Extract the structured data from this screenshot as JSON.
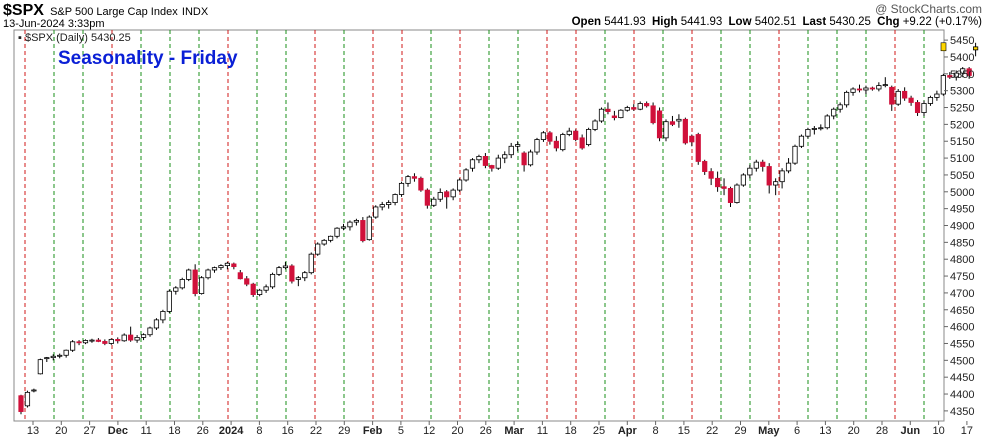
{
  "header": {
    "symbol": "$SPX",
    "name": "S&P 500 Large Cap Index",
    "exchange": "INDX",
    "date": "13-Jun-2024 3:33pm",
    "open_label": "Open",
    "open": "5441.93",
    "high_label": "High",
    "high": "5441.93",
    "low_label": "Low",
    "low": "5402.51",
    "last_label": "Last",
    "last": "5430.25",
    "chg_label": "Chg",
    "chg": "+9.22 (+0.17%)",
    "watermark": "@ StockCharts.com"
  },
  "legend": {
    "text": "▪ $SPX (Daily) 5430.25"
  },
  "annotation": "Seasonality - Friday",
  "colors": {
    "up_candle": "#ffffff",
    "down_candle": "#d0103a",
    "candle_outline": "#000000",
    "green_line": "#1a8f1a",
    "red_line": "#d01818",
    "title_blue": "#0a1fd6",
    "last_marker": "#ffd700"
  },
  "chart_data": {
    "type": "candlestick",
    "title": "Seasonality - Friday",
    "ylim": [
      4320,
      5480
    ],
    "y_ticks": [
      4350,
      4400,
      4450,
      4500,
      4550,
      4600,
      4650,
      4700,
      4750,
      4800,
      4850,
      4900,
      4950,
      5000,
      5050,
      5100,
      5150,
      5200,
      5250,
      5300,
      5350,
      5400,
      5450
    ],
    "x_ticks": [
      {
        "label": "13",
        "bold": false
      },
      {
        "label": "20",
        "bold": false
      },
      {
        "label": "27",
        "bold": false
      },
      {
        "label": "Dec",
        "bold": true
      },
      {
        "label": "11",
        "bold": false
      },
      {
        "label": "18",
        "bold": false
      },
      {
        "label": "26",
        "bold": false
      },
      {
        "label": "2024",
        "bold": true
      },
      {
        "label": "8",
        "bold": false
      },
      {
        "label": "16",
        "bold": false
      },
      {
        "label": "22",
        "bold": false
      },
      {
        "label": "29",
        "bold": false
      },
      {
        "label": "Feb",
        "bold": true
      },
      {
        "label": "5",
        "bold": false
      },
      {
        "label": "12",
        "bold": false
      },
      {
        "label": "20",
        "bold": false
      },
      {
        "label": "26",
        "bold": false
      },
      {
        "label": "Mar",
        "bold": true
      },
      {
        "label": "11",
        "bold": false
      },
      {
        "label": "18",
        "bold": false
      },
      {
        "label": "25",
        "bold": false
      },
      {
        "label": "Apr",
        "bold": true
      },
      {
        "label": "8",
        "bold": false
      },
      {
        "label": "15",
        "bold": false
      },
      {
        "label": "22",
        "bold": false
      },
      {
        "label": "29",
        "bold": false
      },
      {
        "label": "May",
        "bold": true
      },
      {
        "label": "6",
        "bold": false
      },
      {
        "label": "13",
        "bold": false
      },
      {
        "label": "20",
        "bold": false
      },
      {
        "label": "28",
        "bold": false
      },
      {
        "label": "Jun",
        "bold": true
      },
      {
        "label": "10",
        "bold": false
      },
      {
        "label": "17",
        "bold": false
      }
    ],
    "fridays": [
      {
        "color": "red"
      },
      {
        "color": "green"
      },
      {
        "color": "green"
      },
      {
        "color": "red"
      },
      {
        "color": "green"
      },
      {
        "color": "green"
      },
      {
        "color": "green"
      },
      {
        "color": "red"
      },
      {
        "color": "green"
      },
      {
        "color": "green"
      },
      {
        "color": "red"
      },
      {
        "color": "green"
      },
      {
        "color": "red"
      },
      {
        "color": "red"
      },
      {
        "color": "green"
      },
      {
        "color": "red"
      },
      {
        "color": "green"
      },
      {
        "color": "green"
      },
      {
        "color": "red"
      },
      {
        "color": "red"
      },
      {
        "color": "green"
      },
      {
        "color": "red"
      },
      {
        "color": "green"
      },
      {
        "color": "red"
      },
      {
        "color": "green"
      },
      {
        "color": "green"
      },
      {
        "color": "red"
      },
      {
        "color": "green"
      },
      {
        "color": "green"
      },
      {
        "color": "green"
      },
      {
        "color": "red"
      },
      {
        "color": "green"
      }
    ],
    "ohlc": [
      [
        4395,
        4398,
        4340,
        4348
      ],
      [
        4365,
        4410,
        4360,
        4405
      ],
      [
        4410,
        4416,
        4405,
        4412
      ],
      [
        4460,
        4505,
        4458,
        4502
      ],
      [
        4505,
        4510,
        4495,
        4508
      ],
      [
        4508,
        4518,
        4500,
        4512
      ],
      [
        4512,
        4520,
        4506,
        4515
      ],
      [
        4515,
        4532,
        4508,
        4530
      ],
      [
        4530,
        4560,
        4525,
        4555
      ],
      [
        4555,
        4560,
        4545,
        4553
      ],
      [
        4552,
        4562,
        4548,
        4559
      ],
      [
        4558,
        4564,
        4552,
        4560
      ],
      [
        4560,
        4566,
        4554,
        4556
      ],
      [
        4556,
        4562,
        4545,
        4550
      ],
      [
        4550,
        4565,
        4546,
        4562
      ],
      [
        4562,
        4568,
        4550,
        4558
      ],
      [
        4558,
        4580,
        4555,
        4575
      ],
      [
        4575,
        4600,
        4555,
        4560
      ],
      [
        4560,
        4575,
        4552,
        4568
      ],
      [
        4568,
        4580,
        4560,
        4576
      ],
      [
        4576,
        4600,
        4570,
        4596
      ],
      [
        4596,
        4625,
        4590,
        4620
      ],
      [
        4620,
        4650,
        4610,
        4645
      ],
      [
        4645,
        4710,
        4640,
        4705
      ],
      [
        4705,
        4720,
        4695,
        4715
      ],
      [
        4715,
        4745,
        4710,
        4740
      ],
      [
        4740,
        4772,
        4735,
        4768
      ],
      [
        4768,
        4785,
        4690,
        4698
      ],
      [
        4698,
        4750,
        4695,
        4745
      ],
      [
        4745,
        4772,
        4740,
        4768
      ],
      [
        4768,
        4778,
        4760,
        4775
      ],
      [
        4775,
        4785,
        4768,
        4781
      ],
      [
        4781,
        4792,
        4770,
        4788
      ],
      [
        4786,
        4790,
        4770,
        4778
      ],
      [
        4760,
        4768,
        4740,
        4742
      ],
      [
        4742,
        4750,
        4720,
        4726
      ],
      [
        4726,
        4730,
        4688,
        4695
      ],
      [
        4695,
        4712,
        4690,
        4708
      ],
      [
        4708,
        4725,
        4700,
        4718
      ],
      [
        4718,
        4760,
        4712,
        4755
      ],
      [
        4755,
        4780,
        4750,
        4775
      ],
      [
        4775,
        4792,
        4770,
        4780
      ],
      [
        4780,
        4785,
        4728,
        4735
      ],
      [
        4740,
        4750,
        4720,
        4745
      ],
      [
        4745,
        4765,
        4735,
        4760
      ],
      [
        4760,
        4820,
        4755,
        4815
      ],
      [
        4815,
        4850,
        4810,
        4845
      ],
      [
        4845,
        4860,
        4840,
        4856
      ],
      [
        4856,
        4870,
        4850,
        4868
      ],
      [
        4868,
        4895,
        4862,
        4892
      ],
      [
        4892,
        4905,
        4886,
        4896
      ],
      [
        4896,
        4915,
        4885,
        4910
      ],
      [
        4910,
        4920,
        4900,
        4915
      ],
      [
        4915,
        4925,
        4850,
        4855
      ],
      [
        4858,
        4930,
        4855,
        4925
      ],
      [
        4925,
        4960,
        4920,
        4955
      ],
      [
        4955,
        4970,
        4945,
        4962
      ],
      [
        4962,
        4975,
        4950,
        4968
      ],
      [
        4968,
        4995,
        4960,
        4992
      ],
      [
        4992,
        5030,
        4985,
        5025
      ],
      [
        5025,
        5050,
        5015,
        5045
      ],
      [
        5045,
        5055,
        5030,
        5040
      ],
      [
        5040,
        5045,
        5000,
        5005
      ],
      [
        5005,
        5010,
        4950,
        4960
      ],
      [
        4960,
        4985,
        4955,
        4978
      ],
      [
        4978,
        5010,
        4970,
        4998
      ],
      [
        5000,
        5005,
        4950,
        4985
      ],
      [
        4985,
        5010,
        4975,
        5005
      ],
      [
        5005,
        5040,
        5000,
        5035
      ],
      [
        5035,
        5070,
        5030,
        5065
      ],
      [
        5070,
        5100,
        5060,
        5095
      ],
      [
        5095,
        5110,
        5085,
        5105
      ],
      [
        5105,
        5115,
        5070,
        5078
      ],
      [
        5078,
        5080,
        5060,
        5070
      ],
      [
        5070,
        5110,
        5065,
        5100
      ],
      [
        5100,
        5120,
        5085,
        5110
      ],
      [
        5110,
        5145,
        5100,
        5135
      ],
      [
        5135,
        5150,
        5120,
        5140
      ],
      [
        5115,
        5120,
        5060,
        5080
      ],
      [
        5080,
        5125,
        5075,
        5118
      ],
      [
        5118,
        5160,
        5110,
        5155
      ],
      [
        5155,
        5180,
        5148,
        5175
      ],
      [
        5175,
        5180,
        5140,
        5150
      ],
      [
        5150,
        5165,
        5120,
        5130
      ],
      [
        5125,
        5175,
        5120,
        5170
      ],
      [
        5170,
        5190,
        5165,
        5180
      ],
      [
        5180,
        5185,
        5150,
        5155
      ],
      [
        5160,
        5170,
        5125,
        5130
      ],
      [
        5140,
        5190,
        5135,
        5185
      ],
      [
        5185,
        5215,
        5180,
        5210
      ],
      [
        5210,
        5250,
        5205,
        5245
      ],
      [
        5245,
        5265,
        5230,
        5238
      ],
      [
        5225,
        5240,
        5212,
        5220
      ],
      [
        5220,
        5245,
        5218,
        5242
      ],
      [
        5242,
        5255,
        5238,
        5250
      ],
      [
        5250,
        5260,
        5240,
        5245
      ],
      [
        5245,
        5268,
        5242,
        5262
      ],
      [
        5262,
        5268,
        5250,
        5255
      ],
      [
        5255,
        5265,
        5200,
        5205
      ],
      [
        5240,
        5250,
        5150,
        5160
      ],
      [
        5160,
        5215,
        5150,
        5208
      ],
      [
        5208,
        5225,
        5195,
        5200
      ],
      [
        5210,
        5230,
        5190,
        5215
      ],
      [
        5215,
        5220,
        5140,
        5145
      ],
      [
        5165,
        5170,
        5135,
        5148
      ],
      [
        5170,
        5175,
        5080,
        5090
      ],
      [
        5090,
        5095,
        5050,
        5060
      ],
      [
        5060,
        5070,
        5020,
        5040
      ],
      [
        5040,
        5060,
        5000,
        5015
      ],
      [
        5015,
        5040,
        4990,
        5010
      ],
      [
        5010,
        5015,
        4955,
        4968
      ],
      [
        4968,
        5025,
        4965,
        5020
      ],
      [
        5020,
        5055,
        5015,
        5050
      ],
      [
        5050,
        5080,
        5040,
        5070
      ],
      [
        5070,
        5095,
        5060,
        5088
      ],
      [
        5088,
        5095,
        5060,
        5075
      ],
      [
        5075,
        5085,
        4995,
        5020
      ],
      [
        5020,
        5040,
        4990,
        5030
      ],
      [
        5030,
        5070,
        5010,
        5062
      ],
      [
        5062,
        5100,
        5055,
        5085
      ],
      [
        5085,
        5140,
        5080,
        5135
      ],
      [
        5135,
        5170,
        5130,
        5165
      ],
      [
        5165,
        5190,
        5158,
        5185
      ],
      [
        5185,
        5195,
        5170,
        5188
      ],
      [
        5188,
        5200,
        5182,
        5190
      ],
      [
        5190,
        5230,
        5185,
        5225
      ],
      [
        5225,
        5250,
        5215,
        5245
      ],
      [
        5245,
        5265,
        5235,
        5258
      ],
      [
        5258,
        5300,
        5250,
        5295
      ],
      [
        5295,
        5310,
        5285,
        5305
      ],
      [
        5305,
        5318,
        5295,
        5302
      ],
      [
        5302,
        5315,
        5290,
        5308
      ],
      [
        5308,
        5312,
        5300,
        5305
      ],
      [
        5305,
        5325,
        5298,
        5315
      ],
      [
        5315,
        5340,
        5310,
        5318
      ],
      [
        5310,
        5315,
        5240,
        5260
      ],
      [
        5260,
        5305,
        5255,
        5298
      ],
      [
        5298,
        5310,
        5270,
        5278
      ],
      [
        5278,
        5285,
        5255,
        5265
      ],
      [
        5265,
        5272,
        5225,
        5235
      ],
      [
        5235,
        5270,
        5225,
        5262
      ],
      [
        5262,
        5285,
        5255,
        5280
      ],
      [
        5280,
        5300,
        5270,
        5290
      ],
      [
        5290,
        5350,
        5285,
        5345
      ],
      [
        5345,
        5355,
        5335,
        5340
      ],
      [
        5340,
        5360,
        5330,
        5352
      ],
      [
        5352,
        5370,
        5340,
        5365
      ],
      [
        5365,
        5370,
        5335,
        5345
      ],
      [
        5421,
        5442,
        5402,
        5430
      ]
    ],
    "last": 5430.25
  }
}
